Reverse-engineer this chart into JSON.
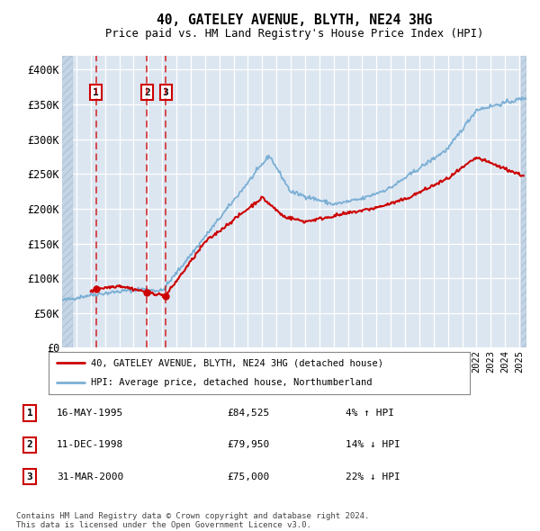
{
  "title": "40, GATELEY AVENUE, BLYTH, NE24 3HG",
  "subtitle": "Price paid vs. HM Land Registry's House Price Index (HPI)",
  "background_color": "#dce6f1",
  "plot_bg_color": "#dce6f1",
  "grid_color": "#ffffff",
  "sale_dates": [
    1995.37,
    1998.94,
    2000.25
  ],
  "sale_prices": [
    84525,
    79950,
    75000
  ],
  "sale_labels": [
    "1",
    "2",
    "3"
  ],
  "red_line_color": "#cc0000",
  "blue_line_color": "#7bafd4",
  "dashed_line_color": "#cc0000",
  "legend_entry1": "40, GATELEY AVENUE, BLYTH, NE24 3HG (detached house)",
  "legend_entry2": "HPI: Average price, detached house, Northumberland",
  "table_data": [
    [
      "1",
      "16-MAY-1995",
      "£84,525",
      "4% ↑ HPI"
    ],
    [
      "2",
      "11-DEC-1998",
      "£79,950",
      "14% ↓ HPI"
    ],
    [
      "3",
      "31-MAR-2000",
      "£75,000",
      "22% ↓ HPI"
    ]
  ],
  "footer": "Contains HM Land Registry data © Crown copyright and database right 2024.\nThis data is licensed under the Open Government Licence v3.0.",
  "ylim": [
    0,
    420000
  ],
  "xlim": [
    1993.0,
    2025.5
  ],
  "yticks": [
    0,
    50000,
    100000,
    150000,
    200000,
    250000,
    300000,
    350000,
    400000
  ],
  "ytick_labels": [
    "£0",
    "£50K",
    "£100K",
    "£150K",
    "£200K",
    "£250K",
    "£300K",
    "£350K",
    "£400K"
  ],
  "hpi_seed": 42
}
